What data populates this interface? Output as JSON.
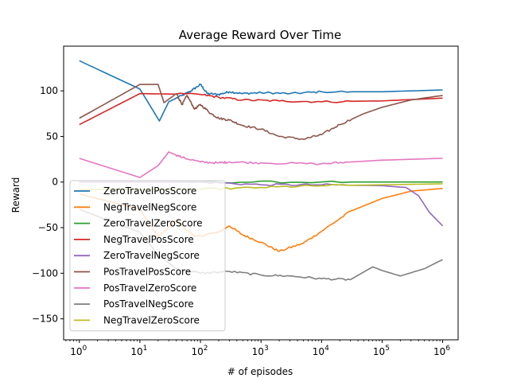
{
  "chart_data": {
    "type": "line",
    "title": "Average Reward Over Time",
    "xlabel": "# of episodes",
    "ylabel": "Reward",
    "xscale": "log",
    "xlim": [
      0.55,
      1800000
    ],
    "ylim": [
      -173,
      149
    ],
    "x_ticks": [
      {
        "value": 1,
        "base": "10",
        "exp": "0"
      },
      {
        "value": 10,
        "base": "10",
        "exp": "1"
      },
      {
        "value": 100,
        "base": "10",
        "exp": "2"
      },
      {
        "value": 1000,
        "base": "10",
        "exp": "3"
      },
      {
        "value": 10000,
        "base": "10",
        "exp": "4"
      },
      {
        "value": 100000,
        "base": "10",
        "exp": "5"
      },
      {
        "value": 1000000,
        "base": "10",
        "exp": "6"
      }
    ],
    "y_ticks": [
      {
        "value": -150,
        "label": "−150"
      },
      {
        "value": -100,
        "label": "−100"
      },
      {
        "value": -50,
        "label": "−50"
      },
      {
        "value": 0,
        "label": "0"
      },
      {
        "value": 50,
        "label": "50"
      },
      {
        "value": 100,
        "label": "100"
      }
    ],
    "grid": false,
    "legend_position": "lower-left",
    "series": [
      {
        "name": "ZeroTravelPosScore",
        "color": "#1f77b4",
        "points": [
          [
            1,
            133
          ],
          [
            10,
            102
          ],
          [
            21,
            67
          ],
          [
            30,
            88
          ],
          [
            50,
            95
          ],
          [
            70,
            100
          ],
          [
            100,
            107
          ],
          [
            130,
            97
          ],
          [
            200,
            96
          ],
          [
            300,
            99
          ],
          [
            500,
            97
          ],
          [
            1000,
            98
          ],
          [
            3000,
            97
          ],
          [
            10000,
            99
          ],
          [
            100000,
            99
          ],
          [
            1000000,
            101
          ]
        ]
      },
      {
        "name": "NegTravelNegScore",
        "color": "#ff7f0e",
        "points": [
          [
            1,
            -13
          ],
          [
            10,
            -30
          ],
          [
            20,
            -60
          ],
          [
            40,
            -42
          ],
          [
            80,
            -60
          ],
          [
            200,
            -55
          ],
          [
            300,
            -48
          ],
          [
            500,
            -58
          ],
          [
            1000,
            -66
          ],
          [
            2000,
            -76
          ],
          [
            5000,
            -67
          ],
          [
            10000,
            -54
          ],
          [
            30000,
            -32
          ],
          [
            100000,
            -18
          ],
          [
            300000,
            -10
          ],
          [
            1000000,
            -7
          ]
        ]
      },
      {
        "name": "ZeroTravelZeroScore",
        "color": "#2ca02c",
        "points": [
          [
            1,
            0
          ],
          [
            100,
            0
          ],
          [
            10000,
            0
          ],
          [
            1000000,
            0
          ]
        ]
      },
      {
        "name": "NegTravelPosScore",
        "color": "#d62728",
        "points": [
          [
            1,
            63
          ],
          [
            10,
            97
          ],
          [
            100,
            96
          ],
          [
            200,
            93
          ],
          [
            500,
            90
          ],
          [
            2000,
            89
          ],
          [
            10000,
            88
          ],
          [
            100000,
            89
          ],
          [
            1000000,
            92
          ]
        ]
      },
      {
        "name": "ZeroTravelNegScore",
        "color": "#9467bd",
        "points": [
          [
            1,
            0
          ],
          [
            100,
            0
          ],
          [
            1000,
            -3
          ],
          [
            10000,
            -3
          ],
          [
            100000,
            -4
          ],
          [
            250000,
            -6
          ],
          [
            400000,
            -15
          ],
          [
            600000,
            -33
          ],
          [
            1000000,
            -48
          ]
        ]
      },
      {
        "name": "PosTravelPosScore",
        "color": "#8c564b",
        "points": [
          [
            1,
            70
          ],
          [
            10,
            107
          ],
          [
            20,
            107
          ],
          [
            25,
            87
          ],
          [
            40,
            97
          ],
          [
            50,
            85
          ],
          [
            60,
            95
          ],
          [
            80,
            80
          ],
          [
            100,
            85
          ],
          [
            150,
            75
          ],
          [
            200,
            70
          ],
          [
            300,
            68
          ],
          [
            500,
            62
          ],
          [
            1000,
            58
          ],
          [
            2000,
            50
          ],
          [
            5000,
            47
          ],
          [
            10000,
            52
          ],
          [
            20000,
            63
          ],
          [
            50000,
            75
          ],
          [
            100000,
            82
          ],
          [
            300000,
            90
          ],
          [
            1000000,
            95
          ]
        ]
      },
      {
        "name": "PosTravelZeroScore",
        "color": "#e377c2",
        "points": [
          [
            1,
            26
          ],
          [
            10,
            5
          ],
          [
            20,
            18
          ],
          [
            30,
            33
          ],
          [
            50,
            27
          ],
          [
            100,
            22
          ],
          [
            200,
            21
          ],
          [
            300,
            22
          ],
          [
            1000,
            21
          ],
          [
            10000,
            20
          ],
          [
            30000,
            22
          ],
          [
            100000,
            24
          ],
          [
            1000000,
            26
          ]
        ]
      },
      {
        "name": "PosTravelNegScore",
        "color": "#7f7f7f",
        "points": [
          [
            1,
            -30
          ],
          [
            10,
            -55
          ],
          [
            20,
            -80
          ],
          [
            40,
            -95
          ],
          [
            100,
            -100
          ],
          [
            300,
            -98
          ],
          [
            1000,
            -102
          ],
          [
            3000,
            -103
          ],
          [
            10000,
            -106
          ],
          [
            30000,
            -107
          ],
          [
            70000,
            -93
          ],
          [
            100000,
            -97
          ],
          [
            200000,
            -103
          ],
          [
            500000,
            -95
          ],
          [
            1000000,
            -85
          ]
        ]
      },
      {
        "name": "NegTravelZeroScore",
        "color": "#bcbd22",
        "points": [
          [
            1,
            -8
          ],
          [
            100,
            -8
          ],
          [
            1000,
            -6
          ],
          [
            10000,
            -4
          ],
          [
            100000,
            -3
          ],
          [
            1000000,
            -2
          ]
        ]
      }
    ]
  }
}
